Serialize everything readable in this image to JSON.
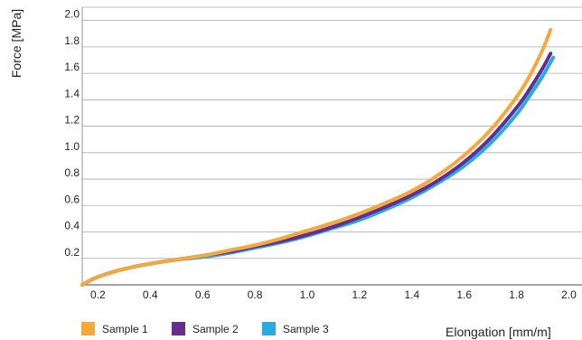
{
  "chart_data": {
    "type": "line",
    "title": "",
    "xlabel": "Elongation [mm/m]",
    "ylabel": "Force [MPa]",
    "xlim": [
      0.14,
      2.05
    ],
    "ylim": [
      0.0,
      2.1
    ],
    "x_ticks": [
      0.2,
      0.4,
      0.6,
      0.8,
      1.0,
      1.2,
      1.4,
      1.6,
      1.8,
      2.0
    ],
    "x_tick_labels": [
      "0.2",
      "0.4",
      "0.6",
      "0.8",
      "1.0",
      "1.2",
      "1.4",
      "1.6",
      "1.8",
      "2.0"
    ],
    "y_ticks": [
      0.2,
      0.4,
      0.6,
      0.8,
      1.0,
      1.2,
      1.4,
      1.6,
      1.8,
      2.0
    ],
    "y_tick_labels": [
      "0.2",
      "0.4",
      "0.6",
      "0.8",
      "1.0",
      "1.2",
      "1.4",
      "1.6",
      "1.8",
      "2.0"
    ],
    "grid": "horizontal",
    "legend_position": "bottom-left",
    "series": [
      {
        "name": "Sample 1",
        "color": "#f5a93b",
        "x": [
          0.14,
          0.2,
          0.3,
          0.4,
          0.5,
          0.6,
          0.7,
          0.8,
          0.9,
          1.0,
          1.1,
          1.2,
          1.3,
          1.4,
          1.5,
          1.6,
          1.7,
          1.8,
          1.85,
          1.9,
          1.93
        ],
        "y": [
          0.0,
          0.06,
          0.12,
          0.16,
          0.19,
          0.22,
          0.26,
          0.3,
          0.35,
          0.41,
          0.47,
          0.54,
          0.62,
          0.71,
          0.83,
          0.98,
          1.17,
          1.42,
          1.58,
          1.78,
          1.93
        ]
      },
      {
        "name": "Sample 2",
        "color": "#662d91",
        "x": [
          0.14,
          0.2,
          0.3,
          0.4,
          0.5,
          0.6,
          0.7,
          0.8,
          0.9,
          1.0,
          1.1,
          1.2,
          1.3,
          1.4,
          1.5,
          1.6,
          1.7,
          1.8,
          1.85,
          1.9,
          1.93
        ],
        "y": [
          0.0,
          0.06,
          0.12,
          0.16,
          0.19,
          0.22,
          0.25,
          0.29,
          0.33,
          0.38,
          0.44,
          0.51,
          0.59,
          0.68,
          0.79,
          0.93,
          1.11,
          1.34,
          1.48,
          1.64,
          1.75
        ]
      },
      {
        "name": "Sample 3",
        "color": "#29abe2",
        "x": [
          0.14,
          0.2,
          0.3,
          0.4,
          0.5,
          0.6,
          0.7,
          0.8,
          0.9,
          1.0,
          1.1,
          1.2,
          1.3,
          1.4,
          1.5,
          1.6,
          1.7,
          1.8,
          1.85,
          1.9,
          1.94
        ],
        "y": [
          0.0,
          0.06,
          0.12,
          0.16,
          0.19,
          0.21,
          0.24,
          0.28,
          0.32,
          0.37,
          0.43,
          0.49,
          0.57,
          0.66,
          0.77,
          0.9,
          1.07,
          1.29,
          1.43,
          1.58,
          1.72
        ]
      }
    ]
  }
}
